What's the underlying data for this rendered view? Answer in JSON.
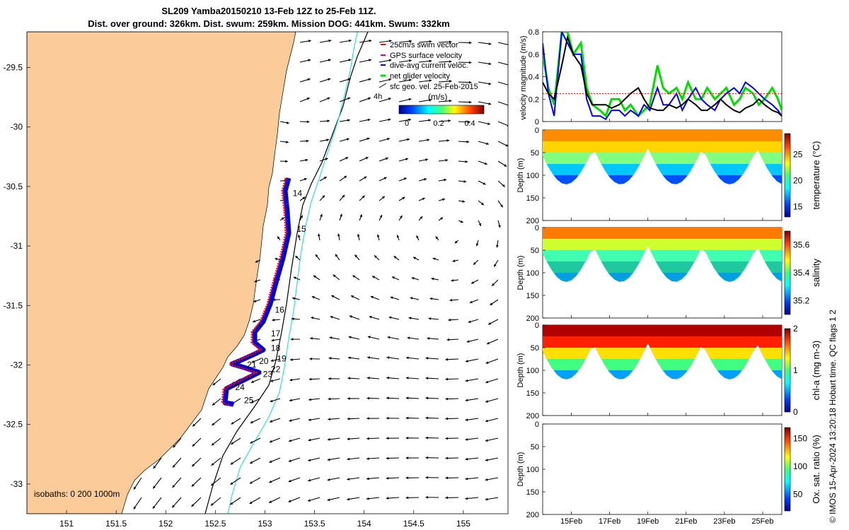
{
  "header": {
    "title_line1": "SL209 Yamba20150210 13-Feb 12Z to 25-Feb 11Z.",
    "title_line2": "Dist. over ground: 326km. Dist. swum: 259km. Mission DOG: 441km. Swum: 332km"
  },
  "credit": "© IMOS 15-Apr-2024 13:20:18 Hobart time. QC flags 1  2",
  "colors": {
    "land": "#fbcb99",
    "swim_vector": "#ff0000",
    "gps_surface_velocity": "#cc00cc",
    "dive_avg_current": "#0000ff",
    "net_glider_velocity": "#00dd00",
    "geo_vel_vector": "#000000",
    "isobath_200": "#000000",
    "isobath_1000": "#33dddd"
  },
  "chart_data": [
    {
      "type": "map",
      "x_ticks": [
        "151",
        "151.5",
        "152",
        "152.5",
        "153",
        "153.5",
        "154",
        "154.5",
        "155"
      ],
      "y_ticks": [
        "-29.5",
        "-30",
        "-30.5",
        "-31",
        "-31.5",
        "-32",
        "-32.5",
        "-33"
      ],
      "xlim": [
        150.6,
        155.45
      ],
      "ylim": [
        -33.25,
        -29.2
      ],
      "legend": {
        "position": "top-right",
        "items": [
          "25cm/s swim vector",
          "GPS surface velocity",
          "dive-avg current veloc.",
          "net glider velocity",
          "sfc geo. vel. 25-Feb-2015"
        ],
        "time_marker": "4h"
      },
      "colorbar": {
        "title": "(m/s)",
        "ticks": [
          "0",
          "0.2",
          "0.4"
        ],
        "range": [
          0,
          0.5
        ]
      },
      "isobaths_label": "isobaths: 0   200 1000m",
      "day_labels": [
        {
          "text": "14",
          "lon": 153.28,
          "lat": -30.58
        },
        {
          "text": "15",
          "lon": 153.32,
          "lat": -30.88
        },
        {
          "text": "16",
          "lon": 153.1,
          "lat": -31.56
        },
        {
          "text": "17",
          "lon": 153.06,
          "lat": -31.76
        },
        {
          "text": "18",
          "lon": 153.06,
          "lat": -31.88
        },
        {
          "text": "19",
          "lon": 153.12,
          "lat": -31.97
        },
        {
          "text": "20",
          "lon": 152.94,
          "lat": -31.99
        },
        {
          "text": "21",
          "lon": 152.82,
          "lat": -32.02
        },
        {
          "text": "22",
          "lon": 153.06,
          "lat": -32.06
        },
        {
          "text": "23",
          "lon": 152.98,
          "lat": -32.1
        },
        {
          "text": "24",
          "lon": 152.7,
          "lat": -32.21
        },
        {
          "text": "25",
          "lon": 152.79,
          "lat": -32.32
        }
      ]
    },
    {
      "type": "line",
      "ylabel": "velocity magnitude (m/s)",
      "ylim": [
        0,
        0.8
      ],
      "y_ticks": [
        "0",
        "0.2",
        "0.4",
        "0.6",
        "0.8"
      ],
      "xlim": [
        0,
        12.5
      ],
      "x": [
        0,
        0.3,
        0.6,
        1,
        1.3,
        1.6,
        2,
        2.3,
        2.6,
        3,
        3.3,
        3.6,
        4,
        4.3,
        4.6,
        5,
        5.3,
        5.6,
        6,
        6.3,
        6.6,
        7,
        7.3,
        7.6,
        8,
        8.3,
        8.6,
        9,
        9.3,
        9.6,
        10,
        10.3,
        10.6,
        11,
        11.3,
        11.6,
        12,
        12.3,
        12.5
      ],
      "series": [
        {
          "name": "net glider velocity",
          "color": "#00dd00",
          "values": [
            0.6,
            0.3,
            0.15,
            0.8,
            0.8,
            0.6,
            0.7,
            0.3,
            0.15,
            0.1,
            0.05,
            0.2,
            0.2,
            0.1,
            0.15,
            0.05,
            0.1,
            0.15,
            0.5,
            0.3,
            0.25,
            0.3,
            0.2,
            0.35,
            0.2,
            0.2,
            0.3,
            0.2,
            0.25,
            0.3,
            0.15,
            0.2,
            0.3,
            0.25,
            0.15,
            0.2,
            0.3,
            0.2,
            0.1
          ]
        },
        {
          "name": "dive-avg current veloc.",
          "color": "#0000ff",
          "values": [
            0.7,
            0.25,
            0.05,
            0.8,
            0.7,
            0.6,
            0.6,
            0.2,
            0.05,
            0.05,
            0.02,
            0.1,
            0.1,
            0.05,
            0.1,
            0.05,
            0.15,
            0.1,
            0.3,
            0.15,
            0.15,
            0.25,
            0.1,
            0.2,
            0.3,
            0.2,
            0.15,
            0.1,
            0.2,
            0.25,
            0.3,
            0.25,
            0.35,
            0.3,
            0.25,
            0.2,
            0.15,
            0.1,
            0.05
          ]
        },
        {
          "name": "25cm/s swim vector",
          "color": "#ff0000",
          "values": [
            0.25,
            0.25,
            0.25,
            0.25,
            0.25,
            0.25,
            0.25,
            0.25,
            0.25,
            0.25,
            0.25,
            0.25,
            0.25,
            0.25,
            0.25,
            0.25,
            0.25,
            0.25,
            0.25,
            0.25,
            0.25,
            0.25,
            0.25,
            0.25,
            0.25,
            0.25,
            0.25,
            0.25,
            0.25,
            0.25,
            0.25,
            0.25,
            0.25,
            0.25,
            0.25,
            0.25,
            0.25,
            0.25,
            0.25
          ]
        },
        {
          "name": "GPS surface velocity",
          "color": "#000000",
          "values": [
            0.35,
            0.25,
            0.2,
            0.5,
            0.75,
            0.6,
            0.5,
            0.25,
            0.15,
            0.15,
            0.15,
            0.12,
            0.15,
            0.2,
            0.25,
            0.3,
            0.2,
            0.12,
            0.1,
            0.1,
            0.15,
            0.12,
            0.15,
            0.2,
            0.15,
            0.1,
            0.1,
            0.15,
            0.2,
            0.15,
            0.1,
            0.08,
            0.12,
            0.15,
            0.2,
            0.15,
            0.1,
            0.08,
            0.05
          ]
        }
      ]
    },
    {
      "type": "heatmap",
      "ylabel": "Depth (m)",
      "ylim": [
        0,
        200
      ],
      "y_ticks": [
        "0",
        "50",
        "100",
        "150",
        "200"
      ],
      "colorbar_label": "temperature (°C)",
      "colorbar_ticks": [
        "15",
        "20",
        "25"
      ],
      "range": [
        13,
        29
      ]
    },
    {
      "type": "heatmap",
      "ylabel": "Depth (m)",
      "ylim": [
        0,
        200
      ],
      "y_ticks": [
        "0",
        "50",
        "100",
        "150",
        "200"
      ],
      "colorbar_label": "salinity",
      "colorbar_ticks": [
        "35.2",
        "35.4",
        "35.6"
      ],
      "range": [
        35.1,
        35.7
      ]
    },
    {
      "type": "heatmap",
      "ylabel": "Depth (m)",
      "ylim": [
        0,
        200
      ],
      "y_ticks": [
        "0",
        "50",
        "100",
        "150",
        "200"
      ],
      "colorbar_label": "chl-a (mg m-3)",
      "colorbar_ticks": [
        "0",
        "1",
        "2"
      ],
      "range": [
        0,
        2
      ]
    },
    {
      "type": "heatmap",
      "ylabel": "Depth (m)",
      "ylim": [
        0,
        200
      ],
      "y_ticks": [
        "0",
        "50",
        "100",
        "150",
        "200"
      ],
      "colorbar_label": "Ox. sat. ratio (%)",
      "colorbar_ticks": [
        "50",
        "100",
        "150"
      ],
      "range": [
        20,
        170
      ],
      "x_ticks": [
        "15Feb",
        "17Feb",
        "19Feb",
        "21Feb",
        "23Feb",
        "25Feb"
      ],
      "xlim": [
        0,
        12.5
      ],
      "x_tick_positions": [
        1.5,
        3.5,
        5.5,
        7.5,
        9.5,
        11.5
      ]
    }
  ]
}
